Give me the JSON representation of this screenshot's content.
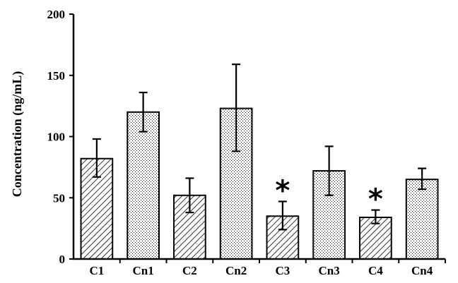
{
  "chart_data": {
    "type": "bar",
    "title": "",
    "xlabel": "",
    "ylabel": "Concentration (ng/mL)",
    "ylim": [
      0,
      200
    ],
    "yticks": [
      "0",
      "50",
      "100",
      "150",
      "200"
    ],
    "categories": [
      "C1",
      "Cn1",
      "C2",
      "Cn2",
      "C3",
      "Cn3",
      "C4",
      "Cn4"
    ],
    "values": [
      82,
      120,
      52,
      123,
      35,
      72,
      34,
      65
    ],
    "error_low": [
      67,
      104,
      38,
      88,
      24,
      52,
      29,
      57
    ],
    "error_high": [
      98,
      136,
      66,
      159,
      47,
      92,
      40,
      74
    ],
    "patterns": [
      "hatch",
      "dots",
      "hatch",
      "dots",
      "hatch",
      "dots",
      "hatch",
      "dots"
    ],
    "annotations": [
      {
        "category": "C3",
        "text": "*"
      },
      {
        "category": "C4",
        "text": "*"
      }
    ],
    "colors": {
      "bar_fill": "#ffffff",
      "stroke": "#000000",
      "pattern": "#000000"
    }
  }
}
